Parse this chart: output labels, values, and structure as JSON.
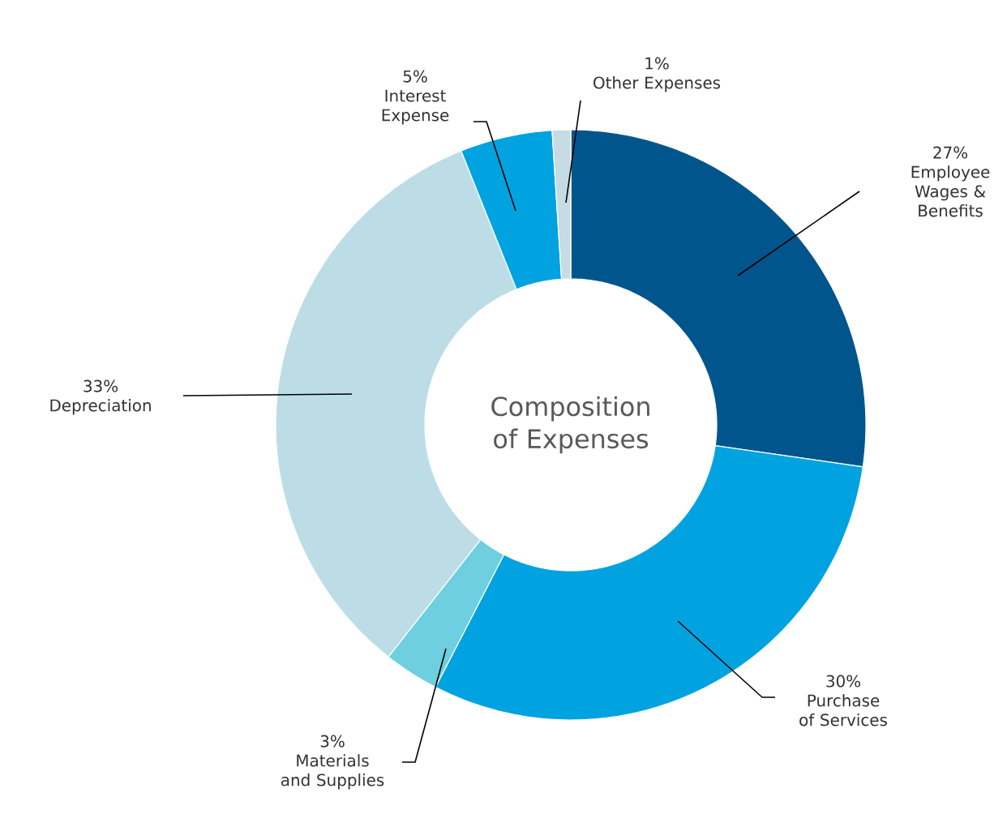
{
  "chart_data": {
    "type": "donut",
    "title": "Composition of Expenses",
    "categories": [
      "Employee Wages & Benefits",
      "Purchase of Services",
      "Materials and Supplies",
      "Depreciation",
      "Interest Expense",
      "Other Expenses"
    ],
    "values": [
      27,
      30,
      3,
      33,
      5,
      1
    ],
    "value_labels": [
      "27%",
      "30%",
      "3%",
      "33%",
      "5%",
      "1%"
    ],
    "colors": [
      "#00568c",
      "#00a3e0",
      "#6dcfe0",
      "#bcdde5",
      "#00a3e0",
      "#c6dbe3"
    ]
  }
}
